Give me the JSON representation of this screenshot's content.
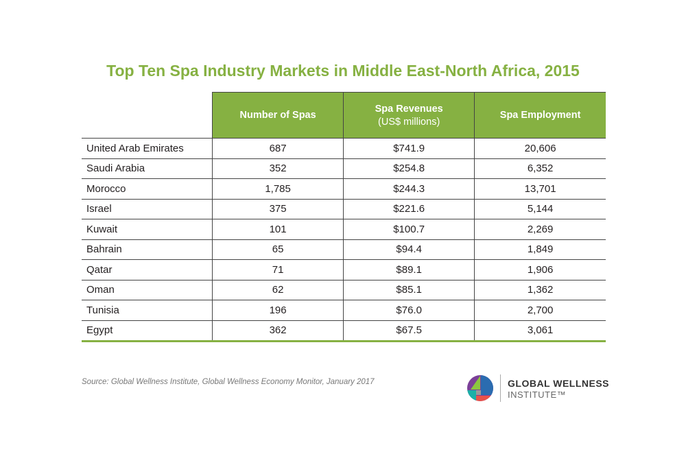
{
  "title": "Top Ten Spa Industry Markets in Middle East-North Africa, 2015",
  "headers": {
    "col1": "Number of Spas",
    "col2": "Spa Revenues",
    "col2_sub": "(US$ millions)",
    "col3": "Spa Employment"
  },
  "rows": [
    {
      "country": "United Arab Emirates",
      "spas": "687",
      "revenue": "$741.9",
      "employment": "20,606"
    },
    {
      "country": "Saudi Arabia",
      "spas": "352",
      "revenue": "$254.8",
      "employment": "6,352"
    },
    {
      "country": "Morocco",
      "spas": "1,785",
      "revenue": "$244.3",
      "employment": "13,701"
    },
    {
      "country": "Israel",
      "spas": "375",
      "revenue": "$221.6",
      "employment": "5,144"
    },
    {
      "country": "Kuwait",
      "spas": "101",
      "revenue": "$100.7",
      "employment": "2,269"
    },
    {
      "country": "Bahrain",
      "spas": "65",
      "revenue": "$94.4",
      "employment": "1,849"
    },
    {
      "country": "Qatar",
      "spas": "71",
      "revenue": "$89.1",
      "employment": "1,906"
    },
    {
      "country": "Oman",
      "spas": "62",
      "revenue": "$85.1",
      "employment": "1,362"
    },
    {
      "country": "Tunisia",
      "spas": "196",
      "revenue": "$76.0",
      "employment": "2,700"
    },
    {
      "country": "Egypt",
      "spas": "362",
      "revenue": "$67.5",
      "employment": "3,061"
    }
  ],
  "source": "Source: Global Wellness Institute, Global Wellness Economy Monitor, January 2017",
  "brand": {
    "line1": "GLOBAL WELLNESS",
    "line2": "INSTITUTE™"
  },
  "colors": {
    "accent": "#86b142"
  }
}
